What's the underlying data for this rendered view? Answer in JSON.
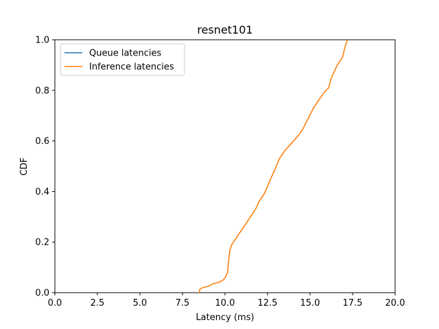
{
  "chart_data": {
    "type": "line",
    "title": "resnet101",
    "xlabel": "Latency (ms)",
    "ylabel": "CDF",
    "xlim": [
      0.0,
      20.0
    ],
    "ylim": [
      0.0,
      1.0
    ],
    "xticks": [
      "0.0",
      "2.5",
      "5.0",
      "7.5",
      "10.0",
      "12.5",
      "15.0",
      "17.5",
      "20.0"
    ],
    "yticks": [
      "0.0",
      "0.2",
      "0.4",
      "0.6",
      "0.8",
      "1.0"
    ],
    "grid": false,
    "legend_position": "upper-left",
    "series": [
      {
        "name": "Queue latencies",
        "color": "#1f77b4",
        "x": [],
        "y": []
      },
      {
        "name": "Inference latencies",
        "color": "#ff7f0e",
        "x": [
          8.5,
          8.5,
          8.55,
          8.7,
          9.0,
          9.3,
          9.6,
          9.9,
          10.05,
          10.15,
          10.2,
          10.25,
          10.3,
          10.4,
          10.6,
          10.9,
          11.2,
          11.5,
          11.8,
          12.0,
          12.3,
          12.5,
          12.75,
          12.95,
          13.2,
          13.5,
          13.9,
          14.3,
          14.6,
          14.9,
          15.2,
          15.5,
          15.8,
          16.1,
          16.2,
          16.4,
          16.6,
          16.9,
          17.05,
          17.2
        ],
        "y": [
          0.0,
          0.01,
          0.015,
          0.02,
          0.025,
          0.035,
          0.04,
          0.05,
          0.065,
          0.08,
          0.12,
          0.15,
          0.17,
          0.19,
          0.21,
          0.24,
          0.27,
          0.3,
          0.33,
          0.36,
          0.39,
          0.42,
          0.46,
          0.49,
          0.53,
          0.56,
          0.59,
          0.62,
          0.65,
          0.69,
          0.73,
          0.76,
          0.79,
          0.81,
          0.84,
          0.87,
          0.9,
          0.93,
          0.97,
          1.0
        ]
      }
    ]
  }
}
